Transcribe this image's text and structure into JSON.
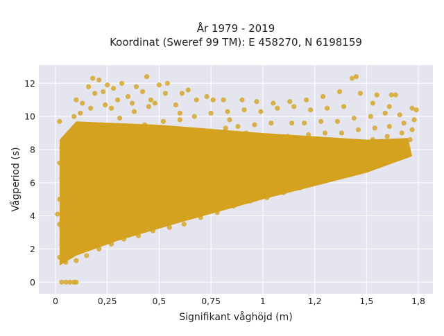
{
  "chart_data": {
    "type": "scatter",
    "title": [
      "År 1979 - 2019",
      "Koordinat (Sweref 99 TM): E 458270, N 6198159"
    ],
    "xlabel": "Signifikant våghöjd (m)",
    "ylabel": "Vågperiod (s)",
    "xlim": [
      -0.08,
      1.82
    ],
    "ylim": [
      -0.7,
      13.1
    ],
    "x_ticks": [
      0,
      0.25,
      0.5,
      0.75,
      1,
      1.25,
      1.5,
      1.75
    ],
    "x_tick_labels": [
      "0",
      "0,25",
      "0,5",
      "0,75",
      "1",
      "1,2",
      "1,5",
      "1,8"
    ],
    "y_ticks": [
      0,
      2,
      4,
      6,
      8,
      10,
      12
    ],
    "y_tick_labels": [
      "0",
      "2",
      "4",
      "6",
      "8",
      "10",
      "12"
    ],
    "grid": true,
    "legend": "none",
    "colors": {
      "marker": "#D4A21E",
      "plot_bg": "#E5E5EF",
      "grid": "#FFFFFF"
    },
    "series": [
      {
        "points": [
          [
            0.03,
            0.0
          ],
          [
            0.05,
            0.0
          ],
          [
            0.07,
            0.0
          ],
          [
            0.09,
            0.0
          ],
          [
            0.1,
            0.0
          ],
          [
            0.02,
            1.5
          ],
          [
            0.03,
            2.3
          ],
          [
            0.02,
            3.5
          ],
          [
            0.01,
            4.1
          ],
          [
            0.02,
            5.0
          ],
          [
            0.03,
            6.3
          ],
          [
            0.02,
            7.2
          ],
          [
            0.03,
            8.1
          ],
          [
            0.02,
            9.7
          ],
          [
            0.03,
            3.3
          ],
          [
            0.05,
            1.2
          ],
          [
            0.06,
            2.0
          ],
          [
            0.07,
            3.0
          ],
          [
            0.06,
            4.0
          ],
          [
            0.05,
            5.0
          ],
          [
            0.06,
            6.0
          ],
          [
            0.07,
            7.0
          ],
          [
            0.08,
            8.0
          ],
          [
            0.08,
            9.0
          ],
          [
            0.09,
            10.0
          ],
          [
            0.07,
            6.5
          ],
          [
            0.05,
            4.5
          ],
          [
            0.1,
            1.3
          ],
          [
            0.12,
            2.2
          ],
          [
            0.1,
            3.1
          ],
          [
            0.11,
            4.3
          ],
          [
            0.12,
            5.4
          ],
          [
            0.13,
            6.6
          ],
          [
            0.12,
            7.7
          ],
          [
            0.11,
            8.8
          ],
          [
            0.12,
            10.2
          ],
          [
            0.13,
            10.8
          ],
          [
            0.1,
            11.0
          ],
          [
            0.12,
            9.4
          ],
          [
            0.15,
            1.6
          ],
          [
            0.16,
            2.5
          ],
          [
            0.17,
            3.5
          ],
          [
            0.15,
            4.5
          ],
          [
            0.16,
            5.6
          ],
          [
            0.17,
            6.8
          ],
          [
            0.16,
            7.9
          ],
          [
            0.18,
            9.1
          ],
          [
            0.17,
            10.5
          ],
          [
            0.19,
            11.4
          ],
          [
            0.16,
            11.8
          ],
          [
            0.18,
            12.3
          ],
          [
            0.19,
            8.5
          ],
          [
            0.21,
            2.0
          ],
          [
            0.22,
            2.9
          ],
          [
            0.23,
            3.9
          ],
          [
            0.22,
            5.0
          ],
          [
            0.24,
            6.1
          ],
          [
            0.23,
            7.2
          ],
          [
            0.25,
            8.4
          ],
          [
            0.22,
            9.5
          ],
          [
            0.24,
            10.7
          ],
          [
            0.23,
            11.5
          ],
          [
            0.21,
            12.2
          ],
          [
            0.25,
            11.9
          ],
          [
            0.2,
            6.5
          ],
          [
            0.27,
            2.3
          ],
          [
            0.28,
            3.3
          ],
          [
            0.29,
            4.3
          ],
          [
            0.3,
            5.4
          ],
          [
            0.28,
            6.5
          ],
          [
            0.3,
            7.6
          ],
          [
            0.29,
            8.8
          ],
          [
            0.31,
            9.9
          ],
          [
            0.3,
            11.0
          ],
          [
            0.28,
            11.7
          ],
          [
            0.32,
            12.0
          ],
          [
            0.27,
            10.5
          ],
          [
            0.33,
            2.6
          ],
          [
            0.34,
            3.7
          ],
          [
            0.35,
            4.8
          ],
          [
            0.36,
            5.9
          ],
          [
            0.34,
            7.0
          ],
          [
            0.37,
            8.1
          ],
          [
            0.36,
            9.2
          ],
          [
            0.38,
            10.3
          ],
          [
            0.35,
            11.2
          ],
          [
            0.39,
            11.8
          ],
          [
            0.37,
            10.8
          ],
          [
            0.4,
            2.8
          ],
          [
            0.41,
            3.9
          ],
          [
            0.42,
            5.0
          ],
          [
            0.43,
            6.2
          ],
          [
            0.41,
            7.3
          ],
          [
            0.44,
            8.4
          ],
          [
            0.43,
            9.5
          ],
          [
            0.45,
            10.6
          ],
          [
            0.42,
            11.5
          ],
          [
            0.44,
            12.4
          ],
          [
            0.46,
            11.0
          ],
          [
            0.41,
            9.0
          ],
          [
            0.47,
            3.1
          ],
          [
            0.48,
            4.2
          ],
          [
            0.5,
            5.3
          ],
          [
            0.49,
            6.4
          ],
          [
            0.51,
            7.5
          ],
          [
            0.5,
            8.6
          ],
          [
            0.52,
            9.7
          ],
          [
            0.48,
            10.8
          ],
          [
            0.53,
            11.4
          ],
          [
            0.5,
            11.9
          ],
          [
            0.54,
            12.0
          ],
          [
            0.55,
            3.3
          ],
          [
            0.56,
            4.4
          ],
          [
            0.57,
            5.5
          ],
          [
            0.58,
            6.6
          ],
          [
            0.57,
            7.7
          ],
          [
            0.59,
            8.8
          ],
          [
            0.6,
            9.8
          ],
          [
            0.58,
            10.7
          ],
          [
            0.61,
            11.4
          ],
          [
            0.6,
            10.2
          ],
          [
            0.62,
            3.5
          ],
          [
            0.63,
            4.6
          ],
          [
            0.65,
            5.7
          ],
          [
            0.64,
            6.8
          ],
          [
            0.66,
            7.9
          ],
          [
            0.65,
            9.0
          ],
          [
            0.67,
            10.0
          ],
          [
            0.68,
            11.0
          ],
          [
            0.64,
            11.6
          ],
          [
            0.66,
            8.2
          ],
          [
            0.7,
            3.9
          ],
          [
            0.71,
            4.9
          ],
          [
            0.72,
            6.0
          ],
          [
            0.73,
            7.1
          ],
          [
            0.72,
            8.1
          ],
          [
            0.74,
            9.1
          ],
          [
            0.75,
            10.2
          ],
          [
            0.73,
            11.2
          ],
          [
            0.76,
            11.0
          ],
          [
            0.71,
            5.5
          ],
          [
            0.78,
            4.2
          ],
          [
            0.79,
            5.2
          ],
          [
            0.8,
            6.2
          ],
          [
            0.81,
            7.3
          ],
          [
            0.8,
            8.3
          ],
          [
            0.82,
            9.3
          ],
          [
            0.83,
            10.3
          ],
          [
            0.81,
            11.0
          ],
          [
            0.84,
            9.8
          ],
          [
            0.79,
            7.7
          ],
          [
            0.86,
            4.6
          ],
          [
            0.87,
            5.5
          ],
          [
            0.88,
            6.5
          ],
          [
            0.89,
            7.5
          ],
          [
            0.9,
            8.5
          ],
          [
            0.88,
            9.4
          ],
          [
            0.91,
            10.4
          ],
          [
            0.9,
            11.0
          ],
          [
            0.92,
            9.0
          ],
          [
            0.94,
            4.9
          ],
          [
            0.95,
            5.8
          ],
          [
            0.96,
            6.7
          ],
          [
            0.97,
            7.7
          ],
          [
            0.98,
            8.6
          ],
          [
            0.96,
            9.5
          ],
          [
            0.99,
            10.3
          ],
          [
            0.97,
            10.9
          ],
          [
            0.95,
            7.2
          ],
          [
            1.02,
            5.1
          ],
          [
            1.03,
            6.0
          ],
          [
            1.04,
            6.9
          ],
          [
            1.05,
            7.8
          ],
          [
            1.06,
            8.7
          ],
          [
            1.04,
            9.6
          ],
          [
            1.07,
            10.5
          ],
          [
            1.05,
            10.8
          ],
          [
            1.1,
            5.4
          ],
          [
            1.11,
            6.2
          ],
          [
            1.12,
            7.1
          ],
          [
            1.13,
            8.0
          ],
          [
            1.12,
            8.8
          ],
          [
            1.14,
            9.6
          ],
          [
            1.15,
            10.6
          ],
          [
            1.13,
            10.9
          ],
          [
            1.18,
            5.7
          ],
          [
            1.19,
            6.5
          ],
          [
            1.2,
            7.3
          ],
          [
            1.21,
            8.1
          ],
          [
            1.22,
            8.9
          ],
          [
            1.2,
            9.6
          ],
          [
            1.23,
            10.4
          ],
          [
            1.21,
            11.0
          ],
          [
            1.26,
            6.0
          ],
          [
            1.27,
            6.7
          ],
          [
            1.28,
            7.4
          ],
          [
            1.29,
            8.2
          ],
          [
            1.3,
            9.0
          ],
          [
            1.28,
            9.7
          ],
          [
            1.31,
            10.5
          ],
          [
            1.29,
            11.2
          ],
          [
            1.34,
            6.3
          ],
          [
            1.35,
            7.0
          ],
          [
            1.36,
            7.6
          ],
          [
            1.37,
            8.3
          ],
          [
            1.38,
            9.0
          ],
          [
            1.36,
            9.7
          ],
          [
            1.39,
            10.6
          ],
          [
            1.37,
            11.5
          ],
          [
            1.42,
            6.6
          ],
          [
            1.43,
            7.2
          ],
          [
            1.44,
            7.8
          ],
          [
            1.45,
            8.5
          ],
          [
            1.46,
            9.2
          ],
          [
            1.44,
            9.9
          ],
          [
            1.43,
            12.3
          ],
          [
            1.45,
            12.4
          ],
          [
            1.47,
            11.4
          ],
          [
            1.5,
            6.9
          ],
          [
            1.51,
            7.4
          ],
          [
            1.52,
            8.0
          ],
          [
            1.53,
            8.6
          ],
          [
            1.54,
            9.3
          ],
          [
            1.52,
            10.0
          ],
          [
            1.55,
            11.3
          ],
          [
            1.53,
            10.8
          ],
          [
            1.57,
            7.2
          ],
          [
            1.58,
            7.6
          ],
          [
            1.59,
            8.2
          ],
          [
            1.6,
            8.8
          ],
          [
            1.61,
            9.4
          ],
          [
            1.59,
            10.2
          ],
          [
            1.62,
            11.3
          ],
          [
            1.61,
            10.6
          ],
          [
            1.64,
            7.6
          ],
          [
            1.65,
            8.0
          ],
          [
            1.66,
            8.5
          ],
          [
            1.67,
            9.0
          ],
          [
            1.68,
            9.6
          ],
          [
            1.66,
            10.1
          ],
          [
            1.64,
            11.3
          ],
          [
            1.7,
            8.1
          ],
          [
            1.71,
            8.6
          ],
          [
            1.72,
            9.2
          ],
          [
            1.73,
            9.8
          ],
          [
            1.74,
            10.4
          ],
          [
            1.72,
            10.5
          ]
        ]
      }
    ]
  }
}
